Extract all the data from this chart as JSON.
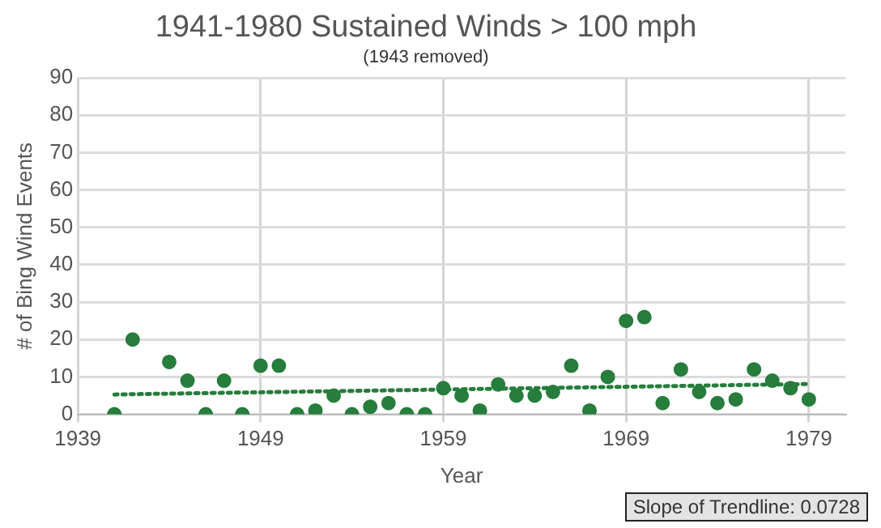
{
  "chart_data": {
    "type": "scatter",
    "title": "1941-1980 Sustained Winds > 100 mph",
    "subtitle": "(1943 removed)",
    "xlabel": "Year",
    "ylabel": "# of Bing Wind Events",
    "xlim": [
      1939,
      1981
    ],
    "xticks": [
      1939,
      1949,
      1959,
      1969,
      1979
    ],
    "ylim": [
      0,
      90
    ],
    "yticks": [
      0,
      10,
      20,
      30,
      40,
      50,
      60,
      70,
      80,
      90
    ],
    "grid": true,
    "legend": false,
    "marker": "circle",
    "series": [
      {
        "color": "#267d3c",
        "x": [
          1941,
          1942,
          1944,
          1945,
          1946,
          1947,
          1948,
          1949,
          1950,
          1951,
          1952,
          1953,
          1954,
          1955,
          1956,
          1957,
          1958,
          1959,
          1960,
          1961,
          1962,
          1963,
          1964,
          1965,
          1966,
          1967,
          1968,
          1969,
          1970,
          1971,
          1972,
          1973,
          1974,
          1975,
          1976,
          1977,
          1978,
          1979
        ],
        "values": [
          0,
          20,
          14,
          9,
          0,
          9,
          0,
          13,
          13,
          0,
          1,
          5,
          0,
          2,
          3,
          0,
          0,
          7,
          5,
          1,
          8,
          5,
          5,
          6,
          13,
          1,
          10,
          25,
          26,
          3,
          12,
          6,
          3,
          4,
          12,
          9,
          7,
          4
        ]
      },
      {
        "type": "line",
        "color": "#267d3c",
        "marker": "none",
        "line_style": "dotted",
        "x": [
          1941,
          1979
        ],
        "values": [
          5.3,
          8.1
        ]
      }
    ],
    "annotations": [
      "Slope of Trendline: 0.0728"
    ]
  }
}
